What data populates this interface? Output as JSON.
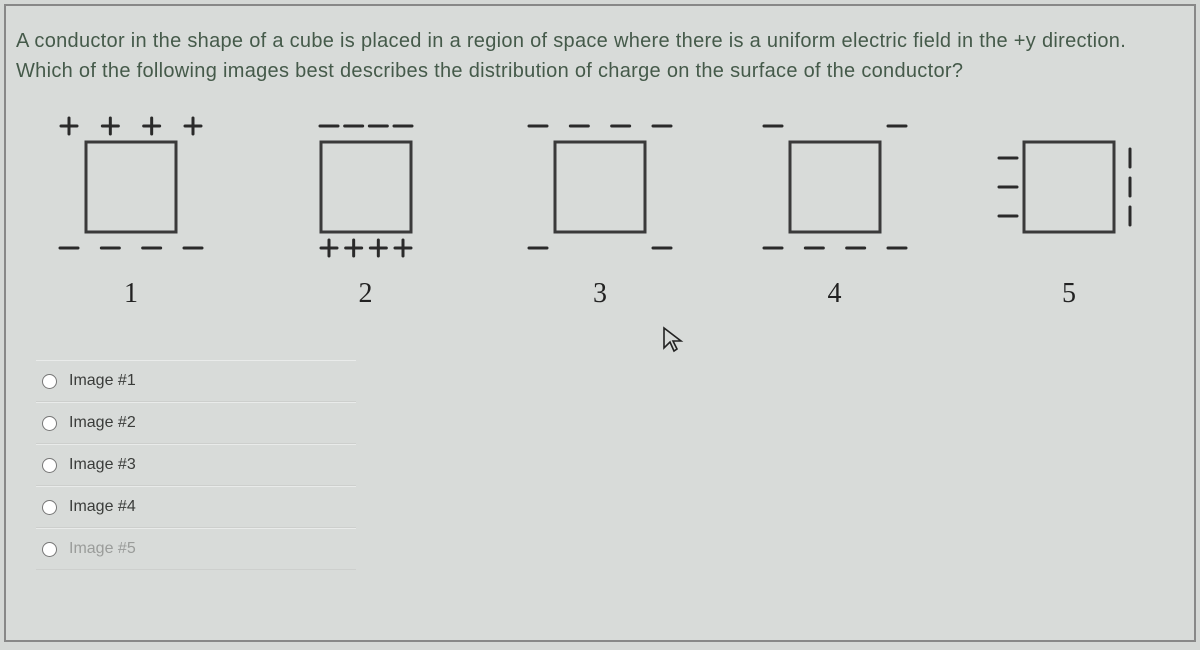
{
  "question": {
    "line1": "A conductor in the shape of a cube is placed in a region of space where there is a uniform electric field in the +y",
    "line2": "direction. Which of the following images best describes the distribution of charge on the surface of the conductor?"
  },
  "diagrams": {
    "stroke_color": "#3a3a3a",
    "symbol_color": "#2a2a2a",
    "square_size": 90,
    "square_stroke_width": 3,
    "symbol_stroke_width": 3,
    "items": [
      {
        "id": 1,
        "label": "1",
        "top": {
          "type": "plus",
          "count": 4,
          "spread": "wide"
        },
        "bottom": {
          "type": "minus",
          "count": 4,
          "spread": "wide"
        },
        "left": null,
        "right": null
      },
      {
        "id": 2,
        "label": "2",
        "top": {
          "type": "minus",
          "count": 4,
          "spread": "square"
        },
        "bottom": {
          "type": "plus",
          "count": 4,
          "spread": "square"
        },
        "left": null,
        "right": null
      },
      {
        "id": 3,
        "label": "3",
        "top": {
          "type": "minus",
          "count": 4,
          "spread": "wide"
        },
        "bottom": {
          "type": "minus",
          "count": 2,
          "spread": "wide"
        },
        "left": null,
        "right": null
      },
      {
        "id": 4,
        "label": "4",
        "top": {
          "type": "minus",
          "count": 2,
          "spread": "wide"
        },
        "bottom": {
          "type": "minus",
          "count": 4,
          "spread": "wide"
        },
        "left": null,
        "right": null
      },
      {
        "id": 5,
        "label": "5",
        "top": null,
        "bottom": null,
        "left": {
          "type": "minus",
          "count": 3,
          "orientation": "horizontal"
        },
        "right": {
          "type": "minus",
          "count": 3,
          "orientation": "vertical"
        }
      }
    ]
  },
  "options": [
    {
      "id": "opt1",
      "label": "Image #1",
      "faded": false
    },
    {
      "id": "opt2",
      "label": "Image #2",
      "faded": false
    },
    {
      "id": "opt3",
      "label": "Image #3",
      "faded": false
    },
    {
      "id": "opt4",
      "label": "Image #4",
      "faded": false
    },
    {
      "id": "opt5",
      "label": "Image #5",
      "faded": true
    }
  ],
  "cursor_glyph": "↖"
}
